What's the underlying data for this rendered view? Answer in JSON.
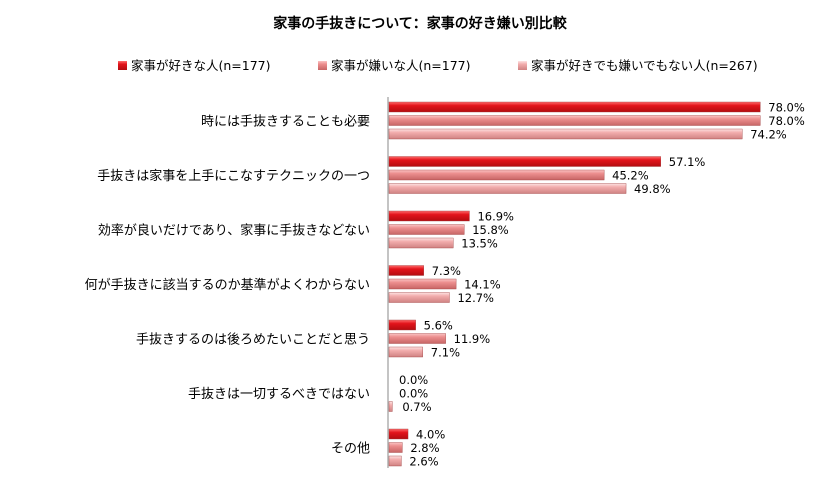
{
  "chart_data": {
    "type": "bar",
    "orientation": "horizontal",
    "title": "家事の手抜きについて：家事の好き嫌い別比較",
    "categories": [
      "時には手抜きすることも必要",
      "手抜きは家事を上手にこなすテクニックの一つ",
      "効率が良いだけであり、家事に手抜きなどない",
      "何が手抜きに該当するのか基準がよくわからない",
      "手抜きするのは後ろめたいことだと思う",
      "手抜きは一切するべきではない",
      "その他"
    ],
    "series": [
      {
        "name": "家事が好きな人(n=177)",
        "color": "#e3141b",
        "light": "#ff6b6b",
        "values": [
          78.0,
          57.1,
          16.9,
          7.3,
          5.6,
          0.0,
          4.0
        ]
      },
      {
        "name": "家事が嫌いな人(n=177)",
        "color": "#e68383",
        "light": "#fbc4c4",
        "values": [
          78.0,
          45.2,
          15.8,
          14.1,
          11.9,
          0.0,
          2.8
        ]
      },
      {
        "name": "家事が好きでも嫌いでもない人(n=267)",
        "color": "#eea0a0",
        "light": "#fde0e0",
        "values": [
          74.2,
          49.8,
          13.5,
          12.7,
          7.1,
          0.7,
          2.6
        ]
      }
    ],
    "value_suffix": "%",
    "xlim": [
      0,
      100
    ],
    "legend": "top",
    "grid": false
  }
}
